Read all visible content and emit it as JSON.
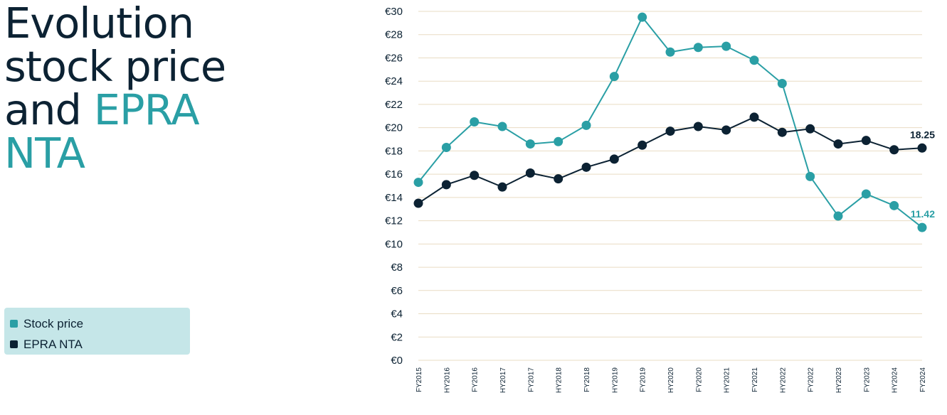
{
  "title": {
    "line1": "Evolution",
    "line2": "stock price",
    "line3_prefix": "and ",
    "line3_accent": "EPRA",
    "line4_accent": "NTA"
  },
  "colors": {
    "stock": "#2a9fa5",
    "epra": "#0c2233",
    "grid": "#e9dcc3",
    "legend_bg": "#c5e6e8"
  },
  "legend": [
    {
      "label": "Stock price",
      "color": "#2a9fa5"
    },
    {
      "label": "EPRA NTA",
      "color": "#0c2233"
    }
  ],
  "chart_data": {
    "type": "line",
    "categories": [
      "FY2015",
      "HY2016",
      "FY2016",
      "HY2017",
      "FY2017",
      "HY2018",
      "FY2018",
      "HY2019",
      "FY2019",
      "HY2020",
      "FY2020",
      "HY2021",
      "FY2021",
      "HY2022",
      "FY2022",
      "HY2023",
      "FY2023",
      "HY2024",
      "FY2024"
    ],
    "ylim": [
      0,
      30
    ],
    "yticks": [
      0,
      2,
      4,
      6,
      8,
      10,
      12,
      14,
      16,
      18,
      20,
      22,
      24,
      26,
      28,
      30
    ],
    "ytick_prefix": "€",
    "grid": true,
    "series": [
      {
        "name": "Stock price",
        "color": "#2a9fa5",
        "values": [
          15.3,
          18.3,
          20.5,
          20.1,
          18.6,
          18.8,
          20.2,
          24.4,
          29.5,
          26.5,
          26.9,
          27.0,
          25.8,
          23.8,
          15.8,
          12.4,
          14.3,
          13.3,
          11.42
        ],
        "end_label": "11.42"
      },
      {
        "name": "EPRA NTA",
        "color": "#0c2233",
        "values": [
          13.5,
          15.1,
          15.9,
          14.9,
          16.1,
          15.6,
          16.6,
          17.3,
          18.5,
          19.7,
          20.1,
          19.8,
          20.9,
          19.6,
          19.9,
          18.6,
          18.9,
          18.1,
          18.25
        ],
        "end_label": "18.25"
      }
    ]
  }
}
